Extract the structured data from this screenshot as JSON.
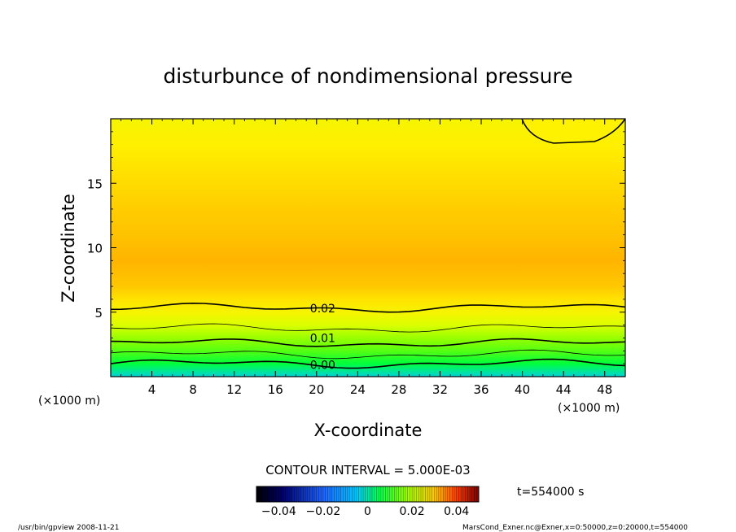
{
  "chart_data": {
    "type": "heatmap",
    "title": "disturbunce of nondimensional pressure",
    "xlabel": "X-coordinate",
    "ylabel": "Z-coordinate",
    "x_unit_left": "(×1000 m)",
    "x_unit_right": "(×1000 m)",
    "xlim": [
      0,
      50
    ],
    "ylim": [
      0,
      20
    ],
    "x_ticks": [
      4,
      8,
      12,
      16,
      20,
      24,
      28,
      32,
      36,
      40,
      44,
      48
    ],
    "y_ticks": [
      5,
      10,
      15
    ],
    "x_tick_labels": [
      "4",
      "8",
      "12",
      "16",
      "20",
      "24",
      "28",
      "32",
      "36",
      "40",
      "44",
      "48"
    ],
    "y_tick_labels": [
      "5",
      "10",
      "15"
    ],
    "vertical_profile": [
      {
        "z": 0,
        "value": -0.004
      },
      {
        "z": 1,
        "value": 0.0
      },
      {
        "z": 2,
        "value": 0.007
      },
      {
        "z": 3,
        "value": 0.012
      },
      {
        "z": 4,
        "value": 0.016
      },
      {
        "z": 5,
        "value": 0.019
      },
      {
        "z": 6,
        "value": 0.022
      },
      {
        "z": 7,
        "value": 0.026
      },
      {
        "z": 9,
        "value": 0.03
      },
      {
        "z": 11,
        "value": 0.027
      },
      {
        "z": 13,
        "value": 0.025
      },
      {
        "z": 16,
        "value": 0.022
      },
      {
        "z": 18,
        "value": 0.02
      },
      {
        "z": 20,
        "value": 0.019
      }
    ],
    "contour_labels": [
      {
        "text": "0.02",
        "x": 20.6,
        "z": 5.3
      },
      {
        "text": "0.01",
        "x": 20.6,
        "z": 3.0
      },
      {
        "text": "0.00",
        "x": 20.6,
        "z": 0.9
      }
    ],
    "contour_interval_text": "CONTOUR INTERVAL = 5.000E-03",
    "colorbar": {
      "min": -0.05,
      "max": 0.05,
      "tick_values": [
        -0.04,
        -0.02,
        0,
        0.02,
        0.04
      ],
      "tick_labels": [
        "−0.04",
        "−0.02",
        "0",
        "0.02",
        "0.04"
      ]
    },
    "time_label": "t=554000 s"
  },
  "footer": {
    "left": "/usr/bin/gpview  2008-11-21",
    "right": "MarsCond_Exner.nc@Exner,x=0:50000,z=0:20000,t=554000"
  }
}
